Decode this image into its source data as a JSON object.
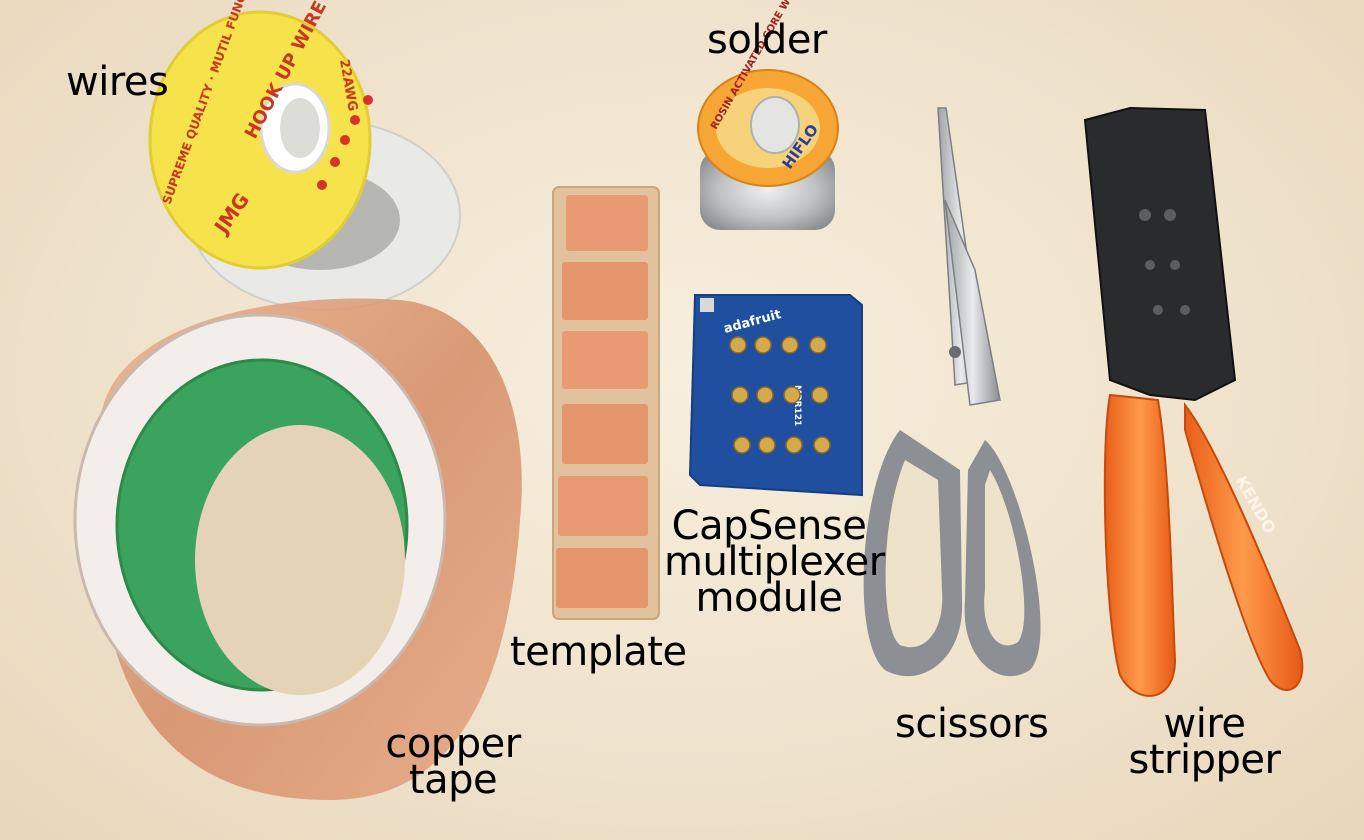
{
  "labels": {
    "wires": "wires",
    "solder": "solder",
    "template": "template",
    "capsense_line1": "CapSense",
    "capsense_line2": "multiplexer",
    "capsense_line3": "module",
    "copper_line1": "copper",
    "copper_line2": "tape",
    "scissors": "scissors",
    "stripper_line1": "wire",
    "stripper_line2": "stripper"
  },
  "printed": {
    "spool_text": "HOOK UP WIRE",
    "spool_rim": "SUPREME QUALITY · MUTIL FUNCTION",
    "spool_gauge": "22AWG",
    "spool_brand": "JMG",
    "solder_band": "ROSIN ACTIVATED CORE WIRE",
    "solder_brand": "HIFLO",
    "board_brand": "adafruit",
    "board_chip": "MPR121",
    "pliers_brand": "KENDO"
  },
  "colors": {
    "spool_yellow": "#f6e24a",
    "copper": "#d9946f",
    "green_core": "#3aa35d",
    "board_blue": "#1f4f9e",
    "scissor_grey": "#8c8f93",
    "handle_orange": "#f2762a"
  }
}
